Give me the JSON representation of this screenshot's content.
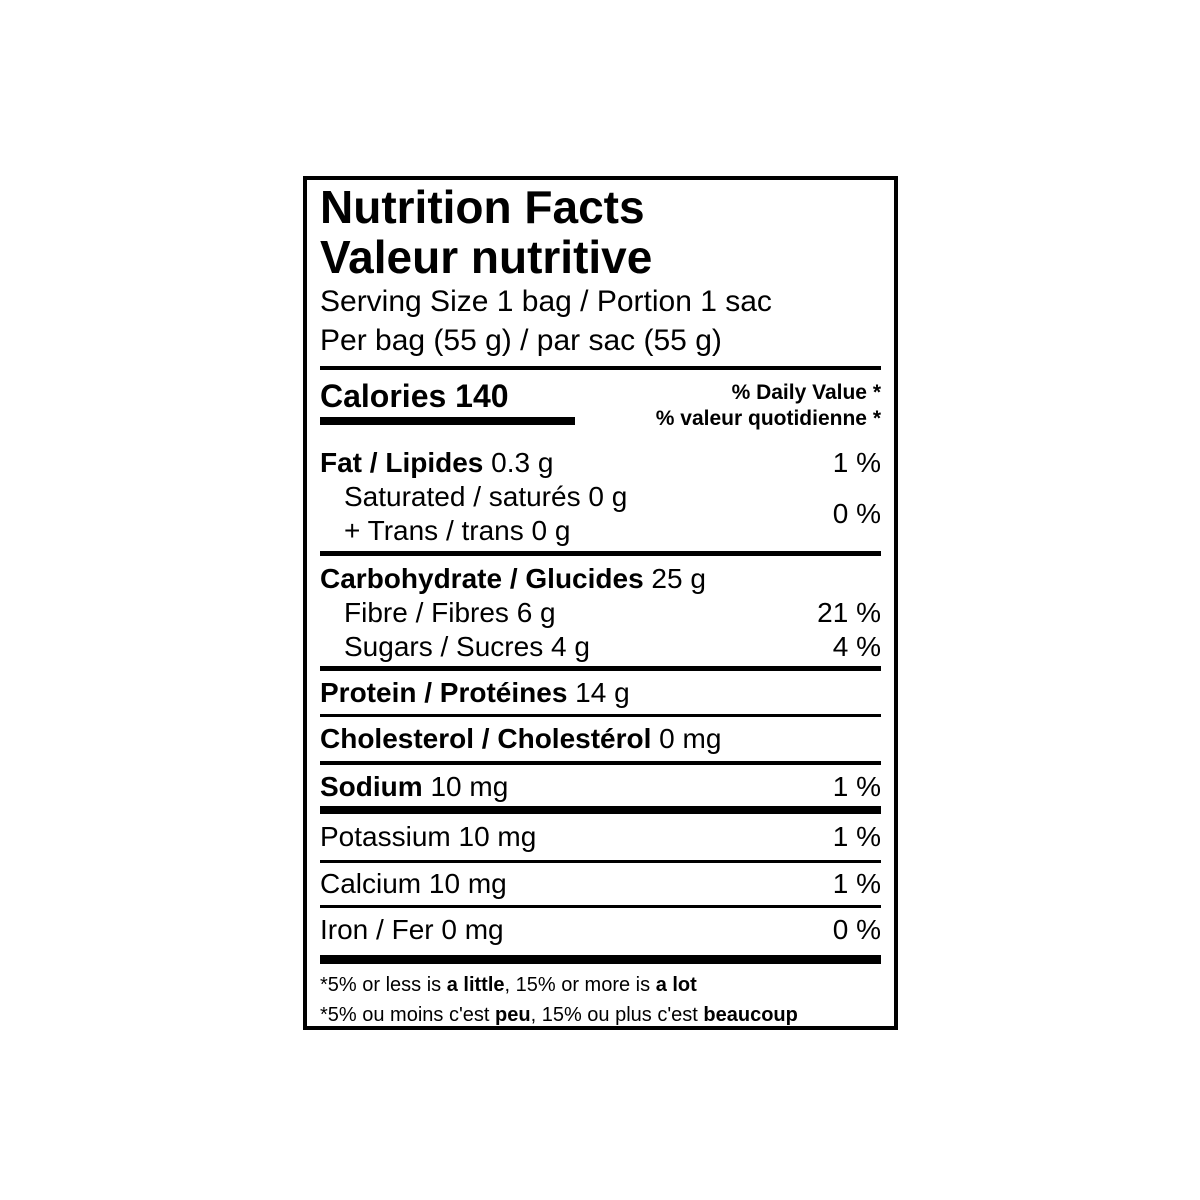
{
  "colors": {
    "text": "#000000",
    "background": "#ffffff",
    "rule": "#000000"
  },
  "label": {
    "title_en": "Nutrition Facts",
    "title_fr": "Valeur nutritive",
    "serving_line": "Serving Size 1 bag / Portion 1 sac",
    "per_line": "Per bag (55 g) / par sac (55 g)",
    "calories": {
      "label": "Calories",
      "value": "140"
    },
    "daily_value_header_en": "% Daily Value *",
    "daily_value_header_fr": "% valeur quotidienne *",
    "rows": {
      "fat": {
        "name": "Fat / Lipides",
        "amount": " 0.3 g",
        "dv": "1 %"
      },
      "saturated": {
        "text": "Saturated / saturés 0 g"
      },
      "trans": {
        "text": "+ Trans / trans 0 g"
      },
      "saturated_trans_dv": "0 %",
      "carbohydrate": {
        "name": "Carbohydrate / Glucides",
        "amount": " 25 g"
      },
      "fibre": {
        "text": "Fibre / Fibres 6 g",
        "dv": "21 %"
      },
      "sugars": {
        "text": "Sugars / Sucres 4 g",
        "dv": "4 %"
      },
      "protein": {
        "name": "Protein / Protéines",
        "amount": " 14 g"
      },
      "cholesterol": {
        "name": "Cholesterol / Cholestérol",
        "amount": " 0 mg"
      },
      "sodium": {
        "name": "Sodium",
        "amount": " 10 mg",
        "dv": "1 %"
      },
      "potassium": {
        "text": "Potassium 10 mg",
        "dv": "1 %"
      },
      "calcium": {
        "text": "Calcium 10 mg",
        "dv": "1 %"
      },
      "iron": {
        "text": "Iron / Fer 0 mg",
        "dv": "0 %"
      }
    },
    "footnotes": {
      "en": {
        "part1": "*5% or less is ",
        "bold1": "a little",
        "part2": ", 15% or more is ",
        "bold2": "a lot"
      },
      "fr": {
        "part1": "*5% ou moins c'est ",
        "bold1": "peu",
        "part2": ", 15% ou plus c'est ",
        "bold2": "beaucoup"
      }
    }
  }
}
